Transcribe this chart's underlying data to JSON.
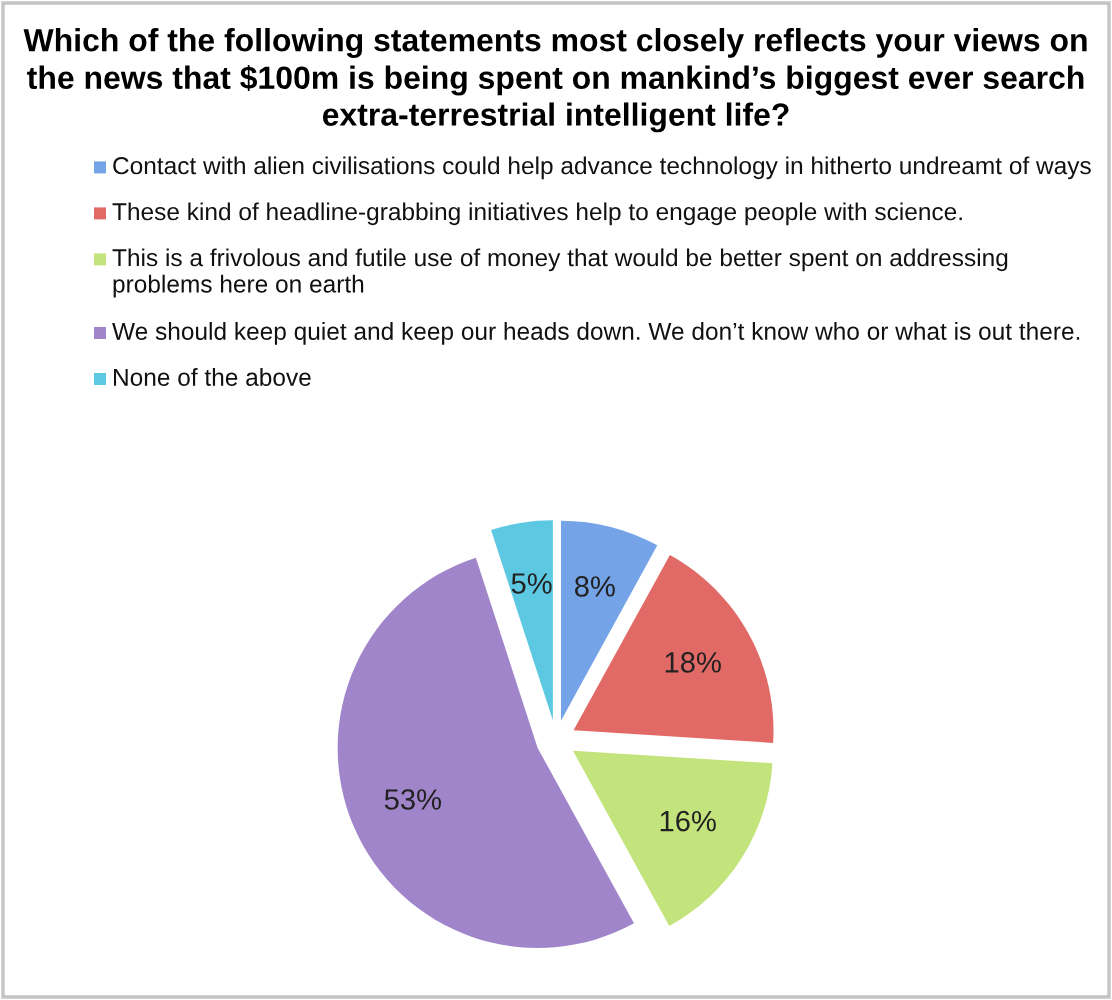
{
  "chart_data": {
    "type": "pie",
    "title": "Which of the following statements most closely reflects your views on the news that $100m is being spent on mankind’s biggest ever search extra-terrestrial intelligent life?",
    "categories": [
      "Contact with alien civilisations could help advance technology in hitherto undreamt of ways",
      "These kind of headline-grabbing initiatives help to engage people with science.",
      "This is a frivolous and futile use of money that would be better spent on addressing problems here on earth",
      "We should keep quiet and keep our heads down. We don’t know who or what is out there.",
      "None of the above"
    ],
    "values": [
      8,
      18,
      16,
      53,
      5
    ],
    "value_labels": [
      "8%",
      "18%",
      "16%",
      "53%",
      "5%"
    ],
    "colors": [
      "#74a3e8",
      "#e26a66",
      "#c3e47c",
      "#a085cb",
      "#5cc8e2"
    ],
    "legend": "top"
  }
}
